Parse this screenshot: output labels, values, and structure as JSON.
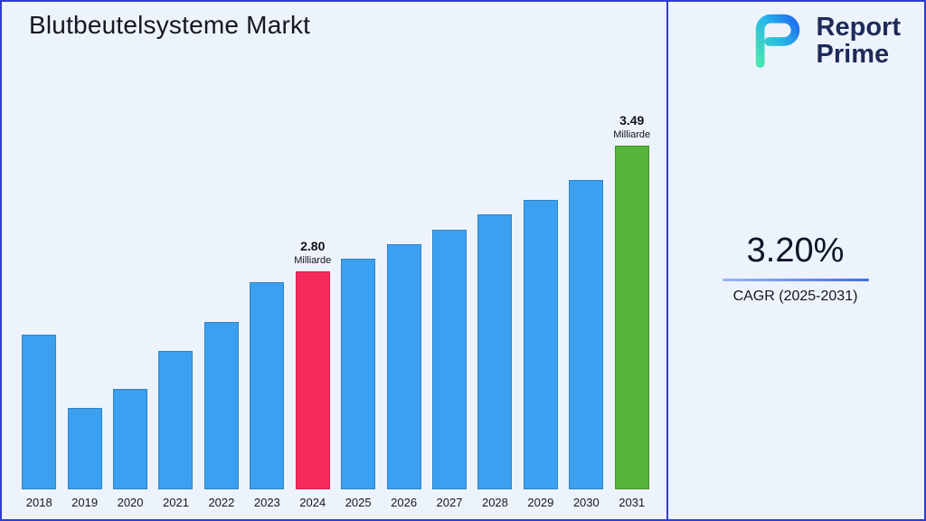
{
  "header": {
    "title": "Blutbeutelsysteme Markt"
  },
  "logo": {
    "line1": "Report",
    "line2": "Prime"
  },
  "cagr": {
    "value": "3.20%",
    "label": "CAGR (2025-2031)"
  },
  "theme": {
    "frame_color": "#2e3cd5",
    "background": "#edf3fc",
    "navy": "#1e2a5a",
    "cagr_line_color": "#3f6df0"
  },
  "chart_data": {
    "type": "bar",
    "title": "Blutbeutelsysteme Markt",
    "categories": [
      "2018",
      "2019",
      "2020",
      "2021",
      "2022",
      "2023",
      "2024",
      "2025",
      "2026",
      "2027",
      "2028",
      "2029",
      "2030",
      "2031"
    ],
    "values": [
      2.45,
      2.05,
      2.15,
      2.36,
      2.52,
      2.74,
      2.8,
      2.87,
      2.95,
      3.03,
      3.11,
      3.19,
      3.3,
      3.49
    ],
    "unit": "Milliarde",
    "ylim": [
      1.6,
      3.6
    ],
    "grid": false,
    "legend": false,
    "xlabel": "",
    "ylabel": "",
    "annotations": [
      {
        "category": "2024",
        "value_label": "2.80",
        "unit_label": "Milliarde"
      },
      {
        "category": "2031",
        "value_label": "3.49",
        "unit_label": "Milliarde"
      }
    ],
    "colors": {
      "default": "#3ba0ef",
      "2024": "#f72a5e",
      "2031": "#55b43a"
    }
  }
}
